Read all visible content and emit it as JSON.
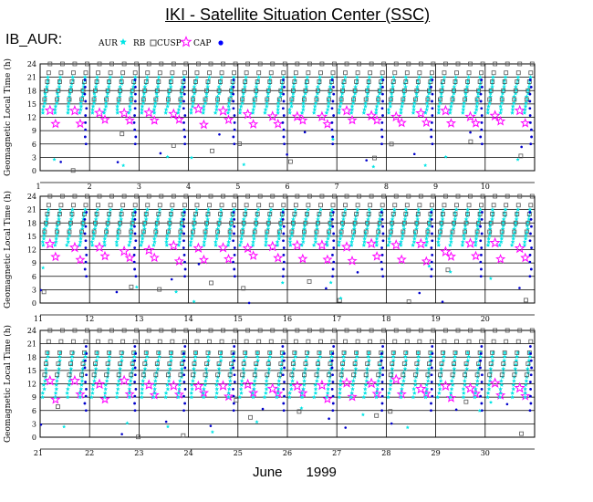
{
  "header": {
    "title": "IKI - Satellite Situation Center (SSC)",
    "prefix": "IB_AUR:"
  },
  "legend": {
    "items": [
      {
        "label": "AUR",
        "marker": "star-small",
        "color": "#00e5e5"
      },
      {
        "label": "RB",
        "marker": "square-open",
        "color": "#555555"
      },
      {
        "label": "CUSP",
        "marker": "star-open",
        "color": "#ff00ff"
      },
      {
        "label": "CAP",
        "marker": "dot",
        "color": "#0000ff"
      }
    ]
  },
  "footer": {
    "month": "June",
    "year": "1999"
  },
  "colors": {
    "aur": "#00e5e5",
    "rb": "#555555",
    "cusp": "#ff00ff",
    "cap": "#0000cc"
  },
  "chart_data": [
    {
      "type": "scatter",
      "title": "",
      "ylabel": "Geomagnetic Local Time (h)",
      "ylim": [
        0,
        24
      ],
      "yticks": [
        "0",
        "3",
        "6",
        "9",
        "12",
        "15",
        "18",
        "21",
        "24"
      ],
      "xlim": [
        1,
        11
      ],
      "xticks": [
        "1",
        "2",
        "3",
        "4",
        "5",
        "6",
        "7",
        "8",
        "9",
        "10"
      ],
      "grid": true,
      "bands": [
        {
          "name": "AUR",
          "mlt_range": [
            13,
            21
          ]
        },
        {
          "name": "RB",
          "mlt_range": [
            16,
            24
          ]
        },
        {
          "name": "CUSP",
          "mlt_range": [
            10,
            16
          ]
        },
        {
          "name": "CAP",
          "mlt_range": [
            0,
            24
          ]
        }
      ]
    },
    {
      "type": "scatter",
      "title": "",
      "ylabel": "Geomagnetic Local Time (h)",
      "ylim": [
        0,
        24
      ],
      "yticks": [
        "0",
        "3",
        "6",
        "9",
        "12",
        "15",
        "18",
        "21",
        "24"
      ],
      "xlim": [
        11,
        21
      ],
      "xticks": [
        "11",
        "12",
        "13",
        "14",
        "15",
        "16",
        "17",
        "18",
        "19",
        "20"
      ],
      "grid": true,
      "bands": [
        {
          "name": "AUR",
          "mlt_range": [
            13,
            21
          ]
        },
        {
          "name": "RB",
          "mlt_range": [
            16,
            24
          ]
        },
        {
          "name": "CUSP",
          "mlt_range": [
            9,
            16
          ]
        },
        {
          "name": "CAP",
          "mlt_range": [
            0,
            24
          ]
        }
      ]
    },
    {
      "type": "scatter",
      "title": "",
      "ylabel": "Geomagnetic Local Time (h)",
      "ylim": [
        0,
        24
      ],
      "yticks": [
        "0",
        "3",
        "6",
        "9",
        "12",
        "15",
        "18",
        "21",
        "24"
      ],
      "xlim": [
        21,
        31
      ],
      "xticks": [
        "21",
        "22",
        "23",
        "24",
        "25",
        "26",
        "27",
        "28",
        "29",
        "30"
      ],
      "grid": true,
      "bands": [
        {
          "name": "AUR",
          "mlt_range": [
            9,
            19
          ]
        },
        {
          "name": "RB",
          "mlt_range": [
            14,
            24
          ]
        },
        {
          "name": "CUSP",
          "mlt_range": [
            8,
            16
          ]
        },
        {
          "name": "CAP",
          "mlt_range": [
            0,
            24
          ]
        }
      ]
    }
  ]
}
